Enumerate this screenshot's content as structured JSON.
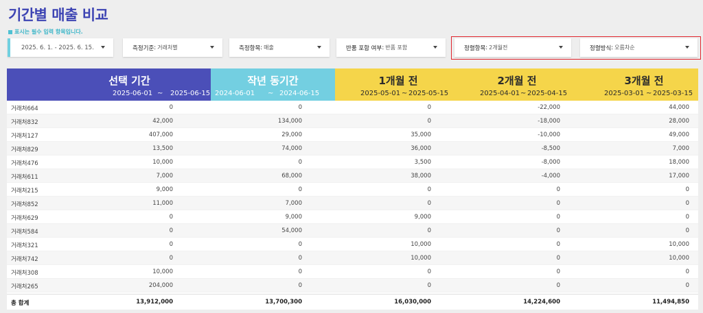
{
  "page": {
    "title": "기간별 매출 비교",
    "required_note": "표시는 필수 입력 항목입니다."
  },
  "filters": {
    "date_range": "2025. 6. 1. - 2025. 6. 15.",
    "criteria": {
      "label": "측정기준",
      "value": "거래처별"
    },
    "measure": {
      "label": "측정항목",
      "value": "매출"
    },
    "returns": {
      "label": "반품 포함 여부",
      "value": "반품 포함"
    },
    "sort_item": {
      "label": "정렬항목",
      "value": "2개월전"
    },
    "sort_order": {
      "label": "정렬방식",
      "value": "오름차순"
    }
  },
  "table": {
    "columns": [
      {
        "title": "선택 기간",
        "start": "2025-06-01",
        "sep": "~",
        "end": "2025-06-15"
      },
      {
        "title": "작년 동기간",
        "start": "2024-06-01",
        "sep": "~",
        "end": "2024-06-15"
      },
      {
        "title": "1개월 전",
        "start": "2025-05-01",
        "sep": "~",
        "end": "2025-05-15"
      },
      {
        "title": "2개월 전",
        "start": "2025-04-01",
        "sep": "~",
        "end": "2025-04-15"
      },
      {
        "title": "3개월 전",
        "start": "2025-03-01",
        "sep": "~",
        "end": "2025-03-15"
      }
    ],
    "rows": [
      {
        "name": "거래처664",
        "values": [
          "0",
          "0",
          "0",
          "-22,000",
          "44,000"
        ]
      },
      {
        "name": "거래처832",
        "values": [
          "42,000",
          "134,000",
          "0",
          "-18,000",
          "28,000"
        ]
      },
      {
        "name": "거래처127",
        "values": [
          "407,000",
          "29,000",
          "35,000",
          "-10,000",
          "49,000"
        ]
      },
      {
        "name": "거래처829",
        "values": [
          "13,500",
          "74,000",
          "36,000",
          "-8,500",
          "7,000"
        ]
      },
      {
        "name": "거래처476",
        "values": [
          "10,000",
          "0",
          "3,500",
          "-8,000",
          "18,000"
        ]
      },
      {
        "name": "거래처611",
        "values": [
          "7,000",
          "68,000",
          "38,000",
          "-4,000",
          "17,000"
        ]
      },
      {
        "name": "거래처215",
        "values": [
          "9,000",
          "0",
          "0",
          "0",
          "0"
        ]
      },
      {
        "name": "거래처852",
        "values": [
          "11,000",
          "7,000",
          "0",
          "0",
          "0"
        ]
      },
      {
        "name": "거래처629",
        "values": [
          "0",
          "9,000",
          "9,000",
          "0",
          "0"
        ]
      },
      {
        "name": "거래처584",
        "values": [
          "0",
          "54,000",
          "0",
          "0",
          "0"
        ]
      },
      {
        "name": "거래처321",
        "values": [
          "0",
          "0",
          "10,000",
          "0",
          "10,000"
        ]
      },
      {
        "name": "거래처742",
        "values": [
          "0",
          "0",
          "10,000",
          "0",
          "10,000"
        ]
      },
      {
        "name": "거래처308",
        "values": [
          "10,000",
          "0",
          "0",
          "0",
          "0"
        ]
      },
      {
        "name": "거래처265",
        "values": [
          "204,000",
          "0",
          "0",
          "0",
          "0"
        ]
      }
    ],
    "total": {
      "name": "총 합계",
      "values": [
        "13,912,000",
        "13,700,300",
        "16,030,000",
        "14,224,600",
        "11,494,850"
      ]
    }
  },
  "colors": {
    "title": "#3d44b3",
    "selected_period": "#4b4fb8",
    "last_year": "#73cfe1",
    "past_months": "#f5d54a",
    "highlight_border": "#e0232b"
  }
}
